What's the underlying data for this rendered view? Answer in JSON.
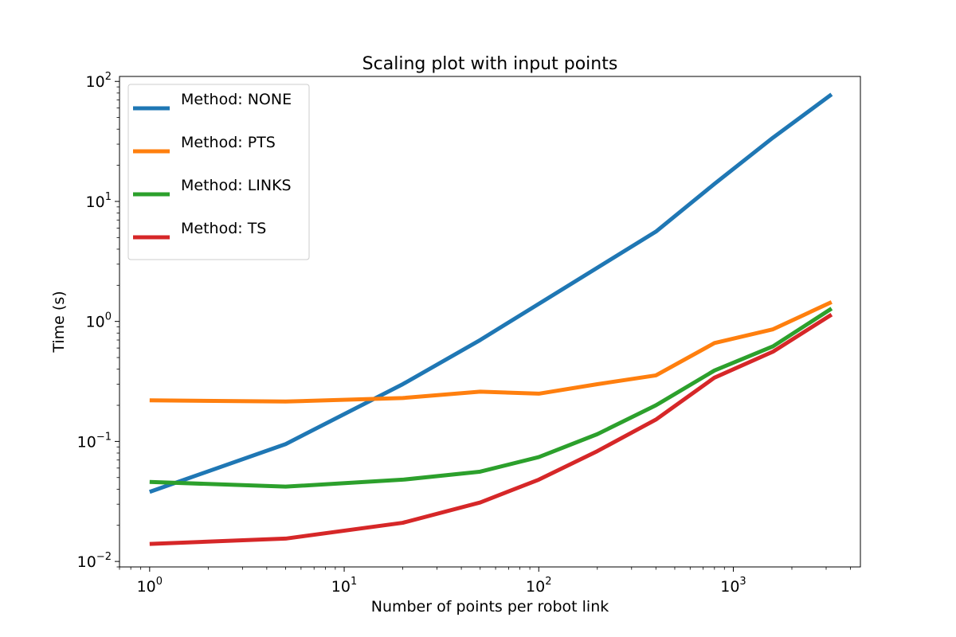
{
  "chart_data": {
    "type": "line",
    "title": "Scaling plot with input points",
    "xlabel": "Number of points per robot link",
    "ylabel": "Time (s)",
    "xscale": "log",
    "yscale": "log",
    "xlim": [
      0.7,
      4500
    ],
    "ylim": [
      0.009,
      110
    ],
    "grid": false,
    "legend_position": "top-left",
    "x_ticks": [
      {
        "base": "10",
        "exp": "0",
        "value": 1
      },
      {
        "base": "10",
        "exp": "1",
        "value": 10
      },
      {
        "base": "10",
        "exp": "2",
        "value": 100
      },
      {
        "base": "10",
        "exp": "3",
        "value": 1000
      }
    ],
    "y_ticks": [
      {
        "base": "10",
        "exp": "−2",
        "value": 0.01
      },
      {
        "base": "10",
        "exp": "−1",
        "value": 0.1
      },
      {
        "base": "10",
        "exp": "0",
        "value": 1
      },
      {
        "base": "10",
        "exp": "1",
        "value": 10
      },
      {
        "base": "10",
        "exp": "2",
        "value": 100
      }
    ],
    "x": [
      1,
      5,
      20,
      50,
      100,
      200,
      400,
      800,
      1600,
      3200
    ],
    "series": [
      {
        "name": "Method: NONE",
        "color": "#1f77b4",
        "values": [
          0.038,
          0.095,
          0.3,
          0.7,
          1.4,
          2.8,
          5.6,
          14,
          34,
          78
        ]
      },
      {
        "name": "Method: PTS",
        "color": "#ff7f0e",
        "values": [
          0.22,
          0.215,
          0.23,
          0.26,
          0.25,
          0.3,
          0.355,
          0.66,
          0.86,
          1.45
        ]
      },
      {
        "name": "Method: LINKS",
        "color": "#2ca02c",
        "values": [
          0.046,
          0.042,
          0.048,
          0.056,
          0.074,
          0.115,
          0.2,
          0.39,
          0.62,
          1.28
        ]
      },
      {
        "name": "Method: TS",
        "color": "#d62728",
        "values": [
          0.014,
          0.0155,
          0.021,
          0.031,
          0.048,
          0.083,
          0.152,
          0.34,
          0.56,
          1.14
        ]
      }
    ]
  }
}
